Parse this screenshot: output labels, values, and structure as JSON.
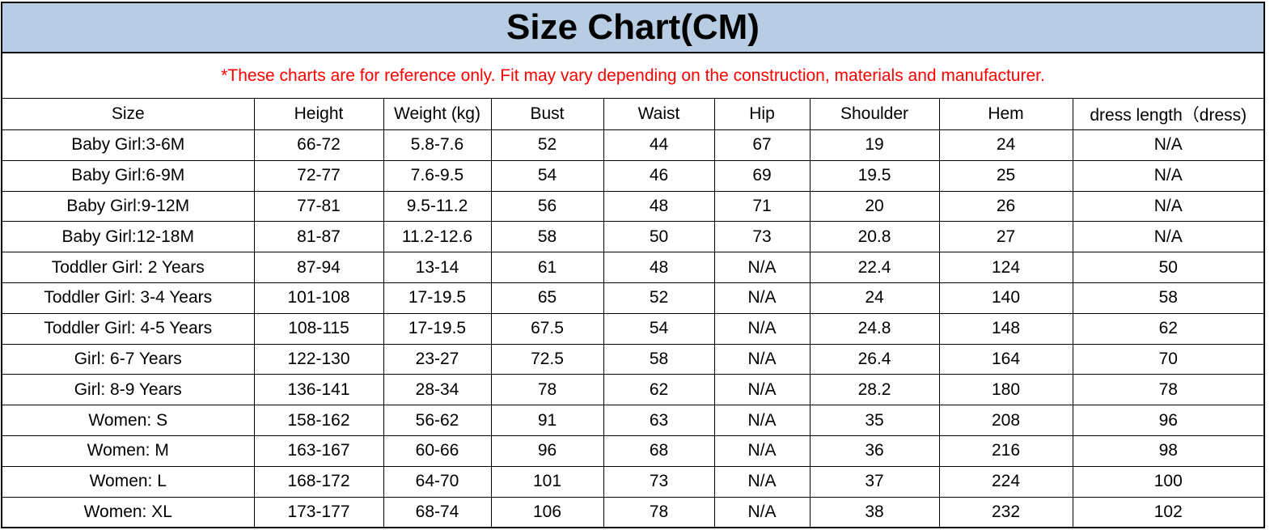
{
  "title": "Size Chart(CM)",
  "note": "*These charts are for reference only. Fit may vary depending on the construction, materials and manufacturer.",
  "colors": {
    "title_bg": "#b8cce4",
    "note_text": "#ff0000"
  },
  "table": {
    "headers": [
      "Size",
      "Height",
      "Weight (kg)",
      "Bust",
      "Waist",
      "Hip",
      "Shoulder",
      "Hem",
      "dress length（dress)"
    ],
    "rows": [
      [
        "Baby Girl:3-6M",
        "66-72",
        "5.8-7.6",
        "52",
        "44",
        "67",
        "19",
        "24",
        "N/A"
      ],
      [
        "Baby Girl:6-9M",
        "72-77",
        "7.6-9.5",
        "54",
        "46",
        "69",
        "19.5",
        "25",
        "N/A"
      ],
      [
        "Baby Girl:9-12M",
        "77-81",
        "9.5-11.2",
        "56",
        "48",
        "71",
        "20",
        "26",
        "N/A"
      ],
      [
        "Baby Girl:12-18M",
        "81-87",
        "11.2-12.6",
        "58",
        "50",
        "73",
        "20.8",
        "27",
        "N/A"
      ],
      [
        "Toddler Girl: 2 Years",
        "87-94",
        "13-14",
        "61",
        "48",
        "N/A",
        "22.4",
        "124",
        "50"
      ],
      [
        "Toddler Girl: 3-4 Years",
        "101-108",
        "17-19.5",
        "65",
        "52",
        "N/A",
        "24",
        "140",
        "58"
      ],
      [
        "Toddler Girl: 4-5 Years",
        "108-115",
        "17-19.5",
        "67.5",
        "54",
        "N/A",
        "24.8",
        "148",
        "62"
      ],
      [
        "Girl: 6-7 Years",
        "122-130",
        "23-27",
        "72.5",
        "58",
        "N/A",
        "26.4",
        "164",
        "70"
      ],
      [
        "Girl: 8-9 Years",
        "136-141",
        "28-34",
        "78",
        "62",
        "N/A",
        "28.2",
        "180",
        "78"
      ],
      [
        "Women: S",
        "158-162",
        "56-62",
        "91",
        "63",
        "N/A",
        "35",
        "208",
        "96"
      ],
      [
        "Women: M",
        "163-167",
        "60-66",
        "96",
        "68",
        "N/A",
        "36",
        "216",
        "98"
      ],
      [
        "Women: L",
        "168-172",
        "64-70",
        "101",
        "73",
        "N/A",
        "37",
        "224",
        "100"
      ],
      [
        "Women: XL",
        "173-177",
        "68-74",
        "106",
        "78",
        "N/A",
        "38",
        "232",
        "102"
      ]
    ]
  }
}
